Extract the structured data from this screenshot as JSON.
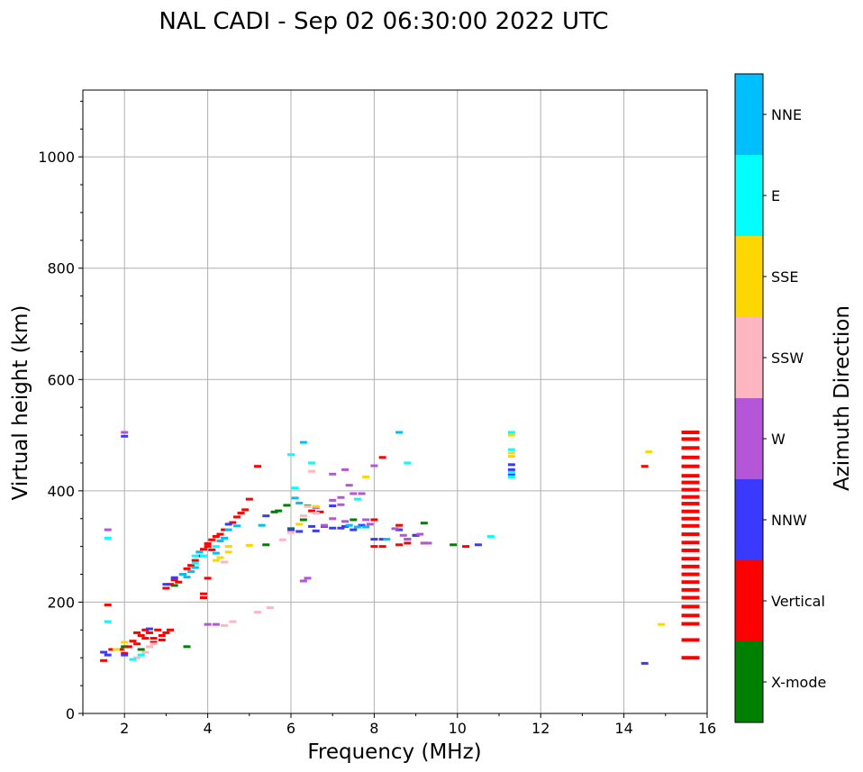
{
  "chart_data": {
    "type": "scatter",
    "title": "NAL CADI - Sep 02 06:30:00 2022 UTC",
    "xlabel": "Frequency (MHz)",
    "ylabel": "Virtual height (km)",
    "xlim": [
      1,
      16
    ],
    "ylim": [
      0,
      1120
    ],
    "grid": true,
    "x_ticks": [
      2,
      4,
      6,
      8,
      10,
      12,
      14,
      16
    ],
    "x_tick_labels": [
      "2",
      "4",
      "6",
      "8",
      "10",
      "12",
      "14",
      "16"
    ],
    "y_ticks": [
      0,
      200,
      400,
      600,
      800,
      1000
    ],
    "y_tick_labels": [
      "0",
      "200",
      "400",
      "600",
      "800",
      "1000"
    ],
    "colorbar": {
      "label": "Azimuth Direction",
      "categories": [
        "X-mode",
        "Vertical",
        "NNW",
        "W",
        "SSW",
        "SSE",
        "E",
        "NNE"
      ],
      "colors": [
        "#008000",
        "#ff0000",
        "#3a3aff",
        "#b556d8",
        "#ffb6c1",
        "#ffd700",
        "#00ffff",
        "#00bfff"
      ]
    },
    "series": [
      {
        "name": "X-mode",
        "color": "#008000",
        "points": [
          [
            5.4,
            303
          ],
          [
            5.6,
            362
          ],
          [
            5.7,
            364
          ],
          [
            5.9,
            374
          ],
          [
            6.0,
            332
          ],
          [
            6.3,
            348
          ],
          [
            7.5,
            348
          ],
          [
            9.2,
            342
          ],
          [
            9.9,
            303
          ],
          [
            2.0,
            120
          ],
          [
            3.5,
            120
          ],
          [
            6.4,
            373
          ],
          [
            2.4,
            115
          ],
          [
            3.2,
            230
          ]
        ]
      },
      {
        "name": "Vertical",
        "color": "#ff0000",
        "points": [
          [
            1.5,
            95
          ],
          [
            1.7,
            115
          ],
          [
            1.9,
            115
          ],
          [
            2.0,
            108
          ],
          [
            2.1,
            120
          ],
          [
            2.2,
            130
          ],
          [
            2.3,
            125
          ],
          [
            2.4,
            140
          ],
          [
            2.5,
            135
          ],
          [
            2.6,
            145
          ],
          [
            2.7,
            135
          ],
          [
            2.8,
            150
          ],
          [
            2.9,
            140
          ],
          [
            3.0,
            145
          ],
          [
            3.1,
            150
          ],
          [
            2.3,
            145
          ],
          [
            2.5,
            150
          ],
          [
            2.7,
            128
          ],
          [
            2.9,
            132
          ],
          [
            3.0,
            225
          ],
          [
            3.1,
            232
          ],
          [
            3.2,
            240
          ],
          [
            3.3,
            236
          ],
          [
            3.4,
            250
          ],
          [
            3.5,
            260
          ],
          [
            3.6,
            266
          ],
          [
            3.7,
            275
          ],
          [
            3.8,
            283
          ],
          [
            3.9,
            295
          ],
          [
            4.0,
            305
          ],
          [
            4.1,
            312
          ],
          [
            4.2,
            318
          ],
          [
            4.3,
            322
          ],
          [
            4.4,
            330
          ],
          [
            4.6,
            343
          ],
          [
            4.7,
            353
          ],
          [
            4.8,
            360
          ],
          [
            4.9,
            366
          ],
          [
            5.0,
            385
          ],
          [
            5.2,
            444
          ],
          [
            3.9,
            215
          ],
          [
            3.9,
            208
          ],
          [
            4.0,
            300
          ],
          [
            6.5,
            364
          ],
          [
            6.7,
            362
          ],
          [
            8.0,
            348
          ],
          [
            8.0,
            300
          ],
          [
            8.2,
            300
          ],
          [
            8.2,
            460
          ],
          [
            8.6,
            303
          ],
          [
            8.6,
            338
          ],
          [
            8.8,
            306
          ],
          [
            9.0,
            320
          ],
          [
            9.2,
            306
          ],
          [
            10.2,
            300
          ],
          [
            14.5,
            444
          ],
          [
            1.6,
            195
          ],
          [
            4.0,
            243
          ],
          [
            4.1,
            294
          ]
        ]
      },
      {
        "name": "NNW",
        "color": "#3a3aff",
        "points": [
          [
            1.5,
            110
          ],
          [
            1.6,
            105
          ],
          [
            2.0,
            498
          ],
          [
            2.0,
            105
          ],
          [
            2.6,
            152
          ],
          [
            3.0,
            232
          ],
          [
            3.2,
            244
          ],
          [
            4.5,
            340
          ],
          [
            5.4,
            355
          ],
          [
            6.0,
            330
          ],
          [
            6.6,
            328
          ],
          [
            6.8,
            336
          ],
          [
            7.0,
            333
          ],
          [
            7.2,
            333
          ],
          [
            7.3,
            336
          ],
          [
            7.5,
            330
          ],
          [
            7.7,
            338
          ],
          [
            8.0,
            313
          ],
          [
            8.2,
            313
          ],
          [
            8.6,
            330
          ],
          [
            8.8,
            313
          ],
          [
            9.0,
            320
          ],
          [
            10.5,
            303
          ],
          [
            11.3,
            447
          ],
          [
            11.3,
            438
          ],
          [
            11.3,
            430
          ],
          [
            14.5,
            90
          ],
          [
            6.2,
            327
          ],
          [
            6.5,
            336
          ],
          [
            7.0,
            373
          ]
        ]
      },
      {
        "name": "W",
        "color": "#b556d8",
        "points": [
          [
            2.0,
            505
          ],
          [
            1.6,
            330
          ],
          [
            4.0,
            160
          ],
          [
            4.2,
            160
          ],
          [
            6.3,
            238
          ],
          [
            6.4,
            243
          ],
          [
            6.8,
            338
          ],
          [
            7.0,
            383
          ],
          [
            7.2,
            388
          ],
          [
            7.2,
            375
          ],
          [
            7.3,
            438
          ],
          [
            7.0,
            430
          ],
          [
            7.4,
            410
          ],
          [
            7.5,
            395
          ],
          [
            7.7,
            395
          ],
          [
            7.3,
            345
          ],
          [
            7.8,
            348
          ],
          [
            7.9,
            340
          ],
          [
            8.0,
            445
          ],
          [
            8.5,
            332
          ],
          [
            8.7,
            320
          ],
          [
            8.8,
            313
          ],
          [
            9.1,
            322
          ],
          [
            9.2,
            306
          ],
          [
            9.3,
            306
          ],
          [
            6.6,
            370
          ],
          [
            7.0,
            350
          ]
        ]
      },
      {
        "name": "SSW",
        "color": "#ffb6c1",
        "points": [
          [
            2.3,
            100
          ],
          [
            2.5,
            110
          ],
          [
            2.7,
            125
          ],
          [
            2.6,
            120
          ],
          [
            4.4,
            272
          ],
          [
            4.4,
            158
          ],
          [
            4.6,
            165
          ],
          [
            5.2,
            182
          ],
          [
            5.5,
            190
          ],
          [
            5.8,
            312
          ],
          [
            6.0,
            325
          ],
          [
            6.3,
            355
          ],
          [
            6.4,
            372
          ],
          [
            6.5,
            435
          ],
          [
            4.5,
            300
          ],
          [
            6.6,
            360
          ]
        ]
      },
      {
        "name": "SSE",
        "color": "#ffd700",
        "points": [
          [
            1.8,
            115
          ],
          [
            2.0,
            128
          ],
          [
            4.2,
            275
          ],
          [
            4.3,
            280
          ],
          [
            4.5,
            290
          ],
          [
            4.5,
            300
          ],
          [
            5.0,
            302
          ],
          [
            6.2,
            340
          ],
          [
            6.6,
            372
          ],
          [
            7.8,
            425
          ],
          [
            11.3,
            500
          ],
          [
            11.3,
            468
          ],
          [
            11.3,
            462
          ],
          [
            14.6,
            470
          ],
          [
            14.9,
            160
          ],
          [
            15.7,
            236
          ]
        ]
      },
      {
        "name": "E",
        "color": "#00ffff",
        "points": [
          [
            1.6,
            315
          ],
          [
            1.6,
            165
          ],
          [
            2.2,
            97
          ],
          [
            2.4,
            105
          ],
          [
            3.7,
            270
          ],
          [
            3.7,
            283
          ],
          [
            3.9,
            283
          ],
          [
            3.8,
            290
          ],
          [
            4.2,
            300
          ],
          [
            6.0,
            465
          ],
          [
            6.1,
            405
          ],
          [
            6.5,
            450
          ],
          [
            7.6,
            385
          ],
          [
            8.8,
            450
          ],
          [
            10.8,
            318
          ],
          [
            11.3,
            474
          ],
          [
            11.3,
            505
          ],
          [
            11.3,
            425
          ],
          [
            11.3,
            433
          ]
        ]
      },
      {
        "name": "NNE",
        "color": "#00bfff",
        "points": [
          [
            3.4,
            250
          ],
          [
            3.5,
            245
          ],
          [
            3.6,
            255
          ],
          [
            3.7,
            262
          ],
          [
            3.8,
            290
          ],
          [
            4.2,
            288
          ],
          [
            4.3,
            310
          ],
          [
            4.4,
            315
          ],
          [
            4.5,
            330
          ],
          [
            4.7,
            337
          ],
          [
            5.3,
            338
          ],
          [
            6.1,
            387
          ],
          [
            6.3,
            487
          ],
          [
            6.2,
            378
          ],
          [
            7.4,
            338
          ],
          [
            7.8,
            335
          ],
          [
            8.3,
            313
          ],
          [
            8.6,
            505
          ],
          [
            7.6,
            335
          ]
        ]
      },
      {
        "name": "Vertical stack",
        "color": "#ff0000",
        "points": [
          [
            15.6,
            505
          ],
          [
            15.6,
            493
          ],
          [
            15.6,
            477
          ],
          [
            15.6,
            460
          ],
          [
            15.6,
            444
          ],
          [
            15.6,
            427
          ],
          [
            15.6,
            415
          ],
          [
            15.6,
            402
          ],
          [
            15.6,
            389
          ],
          [
            15.6,
            377
          ],
          [
            15.6,
            363
          ],
          [
            15.6,
            350
          ],
          [
            15.6,
            337
          ],
          [
            15.6,
            322
          ],
          [
            15.6,
            307
          ],
          [
            15.6,
            293
          ],
          [
            15.6,
            278
          ],
          [
            15.6,
            264
          ],
          [
            15.6,
            250
          ],
          [
            15.6,
            236
          ],
          [
            15.6,
            222
          ],
          [
            15.6,
            208
          ],
          [
            15.6,
            192
          ],
          [
            15.6,
            176
          ],
          [
            15.6,
            161
          ],
          [
            15.6,
            132
          ],
          [
            15.6,
            100
          ]
        ]
      }
    ]
  }
}
